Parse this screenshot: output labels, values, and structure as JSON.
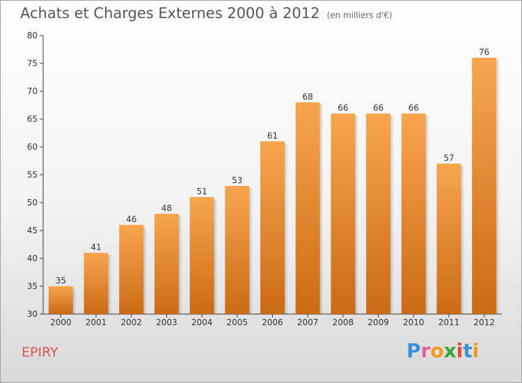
{
  "title": "Achats et Charges Externes 2000 à 2012",
  "subtitle": "(en milliers d'€)",
  "commune": "EPIRY",
  "logo": {
    "letters": [
      {
        "ch": "P",
        "color": "#3b8fd6"
      },
      {
        "ch": "r",
        "color": "#e85d9c"
      },
      {
        "ch": "o",
        "color": "#f29a1f"
      },
      {
        "ch": "x",
        "color": "#3aa635"
      },
      {
        "ch": "i",
        "color": "#e8452c"
      },
      {
        "ch": "t",
        "color": "#3b8fd6"
      },
      {
        "ch": "i",
        "color": "#f29a1f"
      }
    ]
  },
  "chart_data": {
    "type": "bar",
    "categories": [
      "2000",
      "2001",
      "2002",
      "2003",
      "2004",
      "2005",
      "2006",
      "2007",
      "2008",
      "2009",
      "2010",
      "2011",
      "2012"
    ],
    "values": [
      35,
      41,
      46,
      48,
      51,
      53,
      61,
      68,
      66,
      66,
      66,
      57,
      76
    ],
    "ylim": [
      30,
      80
    ],
    "yticks": [
      30,
      35,
      40,
      45,
      50,
      55,
      60,
      65,
      70,
      75,
      80
    ],
    "grid": false,
    "bar_color": "#f0953a"
  }
}
